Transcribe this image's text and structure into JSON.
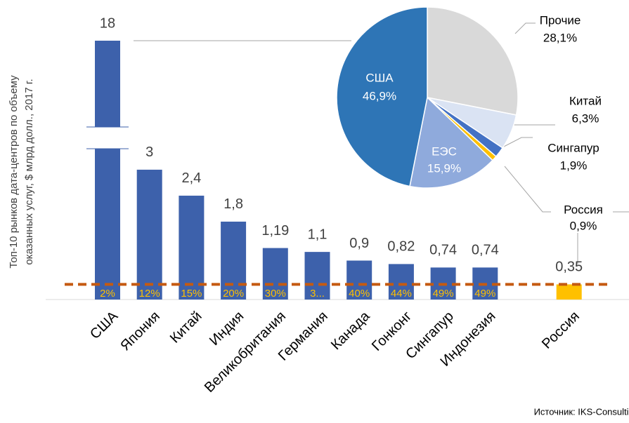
{
  "chart_data": [
    {
      "type": "bar",
      "y_label": [
        "Топ-10 рынков дата-центров по объему",
        "оказанных услуг,  $ млрд долл., 2017 г."
      ],
      "categories": [
        "США",
        "Япония",
        "Китай",
        "Индия",
        "Великобритания",
        "Германия",
        "Канада",
        "Гонконг",
        "Сингапур",
        "Индонезия",
        "Россия"
      ],
      "values": [
        18,
        3,
        2.4,
        1.8,
        1.19,
        1.1,
        0.9,
        0.82,
        0.74,
        0.74,
        0.35
      ],
      "value_labels": [
        "18",
        "3",
        "2,4",
        "1,8",
        "1,19",
        "1,1",
        "0,9",
        "0,82",
        "0,74",
        "0,74",
        "0,35"
      ],
      "inner_labels": [
        "2%",
        "12%",
        "15%",
        "20%",
        "30%",
        "3...",
        "40%",
        "44%",
        "49%",
        "49%",
        null
      ],
      "colors": [
        "#3d61ab",
        "#3d61ab",
        "#3d61ab",
        "#3d61ab",
        "#3d61ab",
        "#3d61ab",
        "#3d61ab",
        "#3d61ab",
        "#3d61ab",
        "#3d61ab",
        "#ffc000"
      ],
      "source": "Источник: IKS-Consulting"
    },
    {
      "type": "pie",
      "categories": [
        "Прочие",
        "Китай",
        "Сингапур",
        "Россия",
        "ЕЭС",
        "США"
      ],
      "values": [
        28.1,
        6.3,
        1.9,
        0.9,
        15.9,
        46.9
      ],
      "value_labels": [
        "28,1%",
        "6,3%",
        "1,9%",
        "0,9%",
        "15,9%",
        "46,9%"
      ],
      "colors": [
        "#d9d9d9",
        "#dae3f3",
        "#4472c4",
        "#ffc000",
        "#8faadc",
        "#2e75b6"
      ]
    }
  ]
}
